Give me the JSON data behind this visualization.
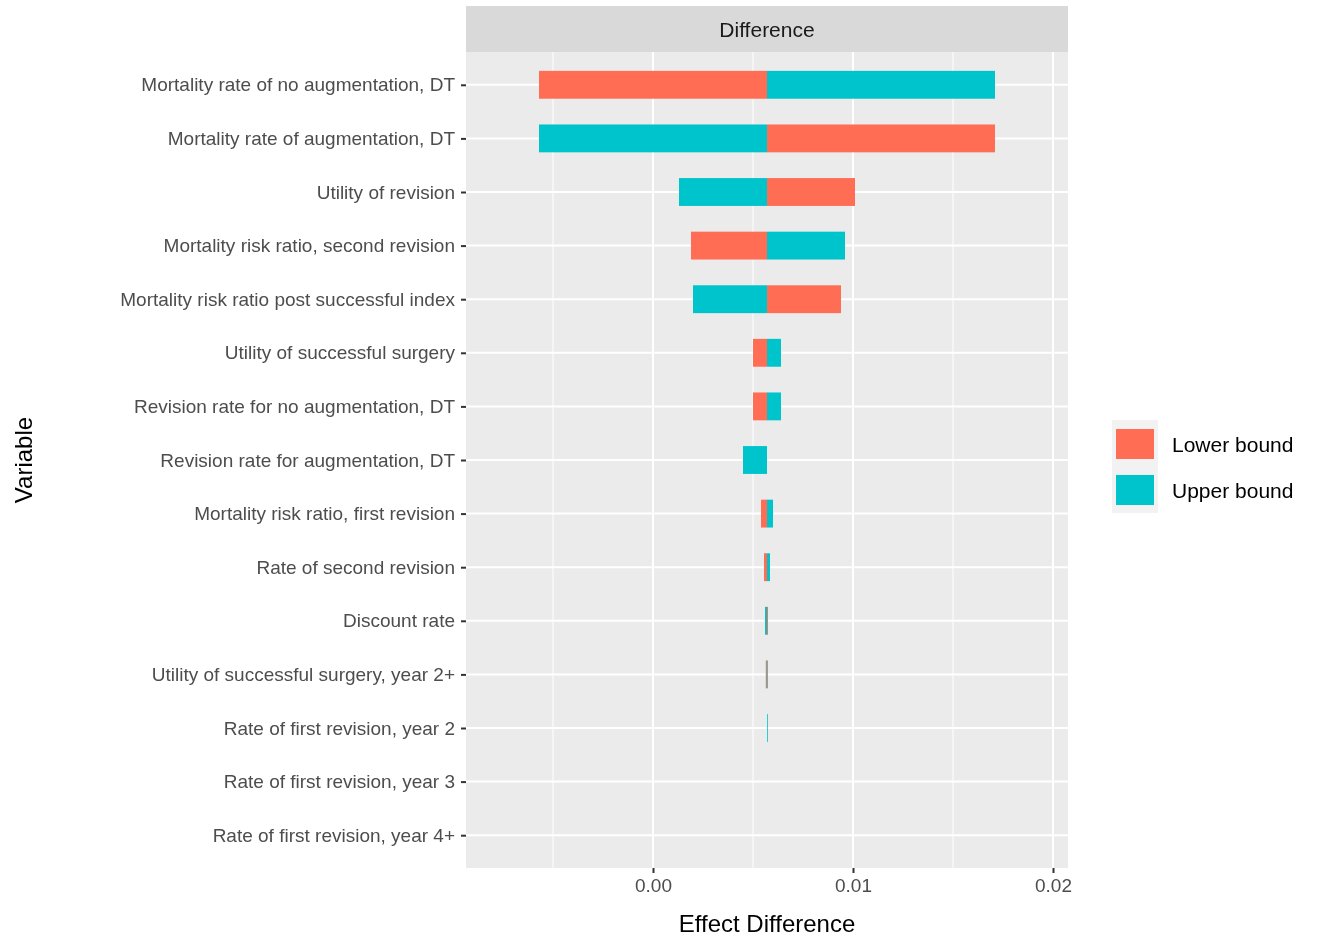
{
  "chart_data": {
    "type": "bar",
    "orientation": "horizontal",
    "title": "Difference",
    "xlabel": "Effect Difference",
    "ylabel": "Variable",
    "categories": [
      "Mortality rate of no augmentation, DT",
      "Mortality rate of augmentation, DT",
      "Utility of revision",
      "Mortality risk ratio, second revision",
      "Mortality risk ratio post successful index",
      "Utility of successful surgery",
      "Revision rate for no augmentation, DT",
      "Revision rate for augmentation, DT",
      "Mortality risk ratio, first revision",
      "Rate of second revision",
      "Discount rate",
      "Utility of successful surgery, year 2+",
      "Rate of first revision, year 2",
      "Rate of first revision, year 3",
      "Rate of first revision, year 4+"
    ],
    "series": [
      {
        "name": "Lower bound",
        "color": "#ff6e54",
        "base": [
          0.0057,
          0.0057,
          0.0057,
          0.0057,
          0.0057,
          0.0057,
          0.0057,
          null,
          0.0057,
          0.0057,
          0.0057,
          0.0057,
          null,
          null,
          null
        ],
        "values": [
          -0.0114,
          0.0114,
          0.0044,
          -0.0038,
          0.0037,
          -0.0007,
          -0.0007,
          null,
          -0.0003,
          -0.00015,
          5e-05,
          -6e-05,
          null,
          null,
          null
        ]
      },
      {
        "name": "Upper bound",
        "color": "#00c4cc",
        "base": [
          0.0057,
          0.0057,
          0.0057,
          0.0057,
          0.0057,
          0.0057,
          0.0057,
          0.0057,
          0.0057,
          0.0057,
          0.0057,
          0.0057,
          0.0057,
          null,
          null
        ],
        "values": [
          0.0114,
          -0.0114,
          -0.0044,
          0.0039,
          -0.0037,
          0.0007,
          0.0007,
          -0.0012,
          0.0003,
          0.00015,
          -0.0001,
          4e-05,
          2e-05,
          null,
          null
        ]
      }
    ],
    "xlim": [
      -0.00935,
      0.02075
    ],
    "xticks": [
      {
        "value": 0,
        "label": "0.00"
      },
      {
        "value": 0.01,
        "label": "0.01"
      },
      {
        "value": 0.02,
        "label": "0.02"
      }
    ],
    "grid": true,
    "legend": "right"
  }
}
